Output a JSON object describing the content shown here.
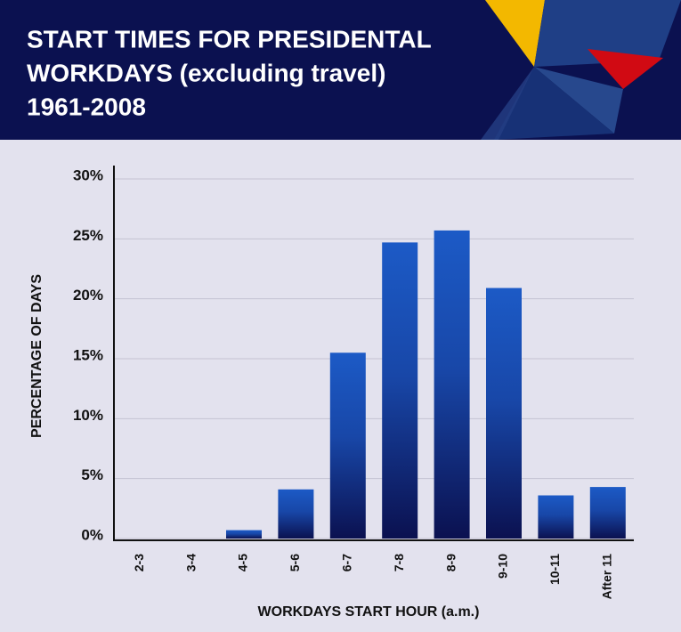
{
  "chart_data": {
    "type": "bar",
    "title": [
      "START TIMES FOR PRESIDENTAL",
      "WORKDAYS (excluding  travel)",
      "1961-2008"
    ],
    "x_label": "WORKDAYS START HOUR (a.m.)",
    "y_label": "PERCENTAGE OF DAYS",
    "categories": [
      "2-3",
      "3-4",
      "4-5",
      "5-6",
      "6-7",
      "7-8",
      "8-9",
      "9-10",
      "10-11",
      "After 11"
    ],
    "values": [
      0,
      0,
      0.7,
      4.1,
      15.5,
      24.7,
      25.7,
      20.9,
      3.6,
      4.3
    ],
    "color": "#1c5ac6",
    "ylim": [
      0,
      30
    ],
    "yticks": [
      {
        "value": 0,
        "label": "0%"
      },
      {
        "value": 5,
        "label": "5%"
      },
      {
        "value": 10,
        "label": "10%"
      },
      {
        "value": 15,
        "label": "15%"
      },
      {
        "value": 20,
        "label": "20%"
      },
      {
        "value": 25,
        "label": "25%"
      },
      {
        "value": 30,
        "label": "30%"
      }
    ],
    "grid": true
  }
}
